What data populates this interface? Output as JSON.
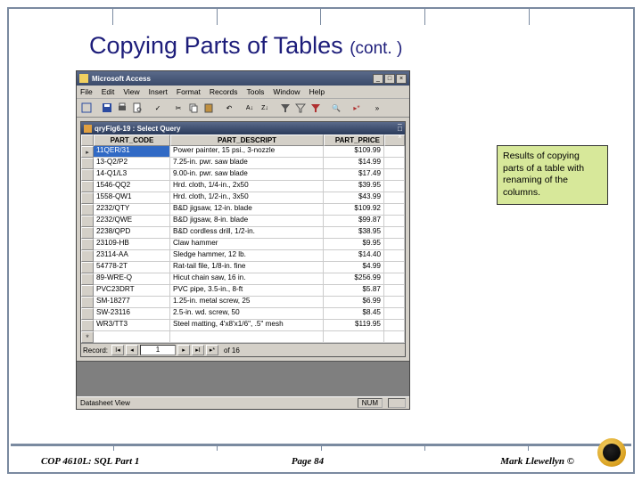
{
  "slide": {
    "title_main": "Copying Parts of Tables",
    "title_cont": "(cont. )"
  },
  "callout": {
    "text": "Results of copying parts of a table with renaming of the columns."
  },
  "access": {
    "app_title": "Microsoft Access",
    "menu": [
      "File",
      "Edit",
      "View",
      "Insert",
      "Format",
      "Records",
      "Tools",
      "Window",
      "Help"
    ],
    "query_title": "qryFig6-19 : Select Query",
    "columns": [
      "PART_CODE",
      "PART_DESCRIPT",
      "PART_PRICE"
    ],
    "rows": [
      {
        "code": "11QER/31",
        "desc": "Power painter, 15 psi., 3-nozzle",
        "price": "$109.99"
      },
      {
        "code": "13-Q2/P2",
        "desc": "7.25-in. pwr. saw blade",
        "price": "$14.99"
      },
      {
        "code": "14-Q1/L3",
        "desc": "9.00-in. pwr. saw blade",
        "price": "$17.49"
      },
      {
        "code": "1546-QQ2",
        "desc": "Hrd. cloth, 1/4-in., 2x50",
        "price": "$39.95"
      },
      {
        "code": "1558-QW1",
        "desc": "Hrd. cloth, 1/2-in., 3x50",
        "price": "$43.99"
      },
      {
        "code": "2232/QTY",
        "desc": "B&D jigsaw, 12-in. blade",
        "price": "$109.92"
      },
      {
        "code": "2232/QWE",
        "desc": "B&D jigsaw, 8-in. blade",
        "price": "$99.87"
      },
      {
        "code": "2238/QPD",
        "desc": "B&D cordless drill, 1/2-in.",
        "price": "$38.95"
      },
      {
        "code": "23109-HB",
        "desc": "Claw hammer",
        "price": "$9.95"
      },
      {
        "code": "23114-AA",
        "desc": "Sledge hammer, 12 lb.",
        "price": "$14.40"
      },
      {
        "code": "54778-2T",
        "desc": "Rat-tail file, 1/8-in. fine",
        "price": "$4.99"
      },
      {
        "code": "89-WRE-Q",
        "desc": "Hicut chain saw, 16 in.",
        "price": "$256.99"
      },
      {
        "code": "PVC23DRT",
        "desc": "PVC pipe, 3.5-in., 8-ft",
        "price": "$5.87"
      },
      {
        "code": "SM-18277",
        "desc": "1.25-in. metal screw, 25",
        "price": "$6.99"
      },
      {
        "code": "SW-23116",
        "desc": "2.5-in. wd. screw, 50",
        "price": "$8.45"
      },
      {
        "code": "WR3/TT3",
        "desc": "Steel matting, 4'x8'x1/6\", .5\" mesh",
        "price": "$119.95"
      }
    ],
    "record_nav": {
      "label": "Record:",
      "current": "1",
      "of_text": "of  16"
    },
    "status_left": "Datasheet View",
    "status_num": "NUM"
  },
  "footer": {
    "left": "COP 4610L: SQL Part 1",
    "center": "Page 84",
    "right": "Mark Llewellyn ©"
  }
}
